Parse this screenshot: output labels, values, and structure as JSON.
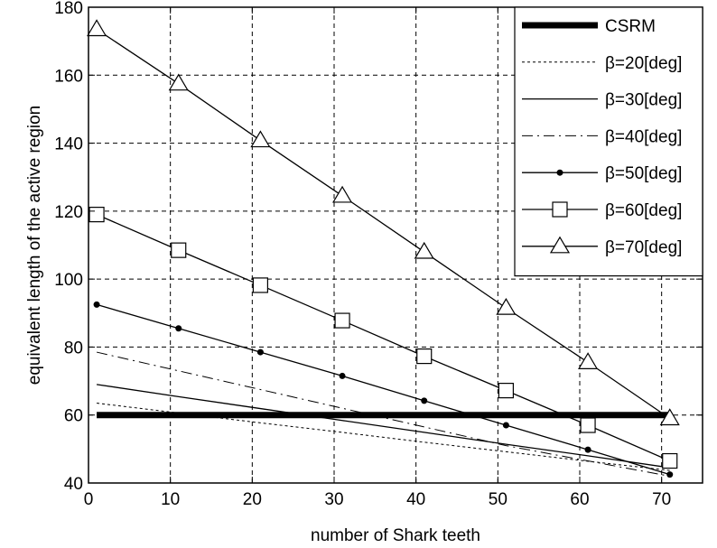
{
  "chart_data": {
    "type": "line",
    "title": "",
    "xlabel": "number of Shark teeth",
    "ylabel": "equivalent length of the active region",
    "xlim": [
      0,
      75
    ],
    "ylim": [
      40,
      180
    ],
    "xticks": [
      0,
      10,
      20,
      30,
      40,
      50,
      60,
      70
    ],
    "yticks": [
      40,
      60,
      80,
      100,
      120,
      140,
      160,
      180
    ],
    "grid": true,
    "legend_position": "top-right",
    "x": [
      1,
      11,
      21,
      31,
      41,
      51,
      61,
      71
    ],
    "series": [
      {
        "name": "CSRM",
        "style": "thick-solid",
        "marker": "none",
        "values": [
          60,
          60,
          60,
          60,
          60,
          60,
          60,
          60
        ]
      },
      {
        "name": "β=20[deg]",
        "style": "dotted",
        "marker": "none",
        "values": [
          63.5,
          60.6,
          57.7,
          54.9,
          52.0,
          49.2,
          46.4,
          43.7
        ]
      },
      {
        "name": "β=30[deg]",
        "style": "solid",
        "marker": "none",
        "values": [
          69,
          65.4,
          61.9,
          58.4,
          54.9,
          51.4,
          48,
          44.5
        ]
      },
      {
        "name": "β=40[deg]",
        "style": "dash-dot",
        "marker": "none",
        "values": [
          78.5,
          73,
          67.5,
          62,
          56.5,
          51,
          46.5,
          42
        ]
      },
      {
        "name": "β=50[deg]",
        "style": "solid",
        "marker": "dot",
        "values": [
          92.5,
          85.5,
          78.5,
          71.5,
          64.2,
          57,
          49.8,
          42.5
        ]
      },
      {
        "name": "β=60[deg]",
        "style": "solid",
        "marker": "square",
        "values": [
          119,
          108.5,
          98.2,
          87.8,
          77.3,
          67.2,
          57,
          46.5
        ]
      },
      {
        "name": "β=70[deg]",
        "style": "solid",
        "marker": "triangle",
        "values": [
          173.5,
          157.5,
          140.8,
          124.5,
          108,
          91.5,
          75.5,
          59
        ]
      }
    ]
  }
}
